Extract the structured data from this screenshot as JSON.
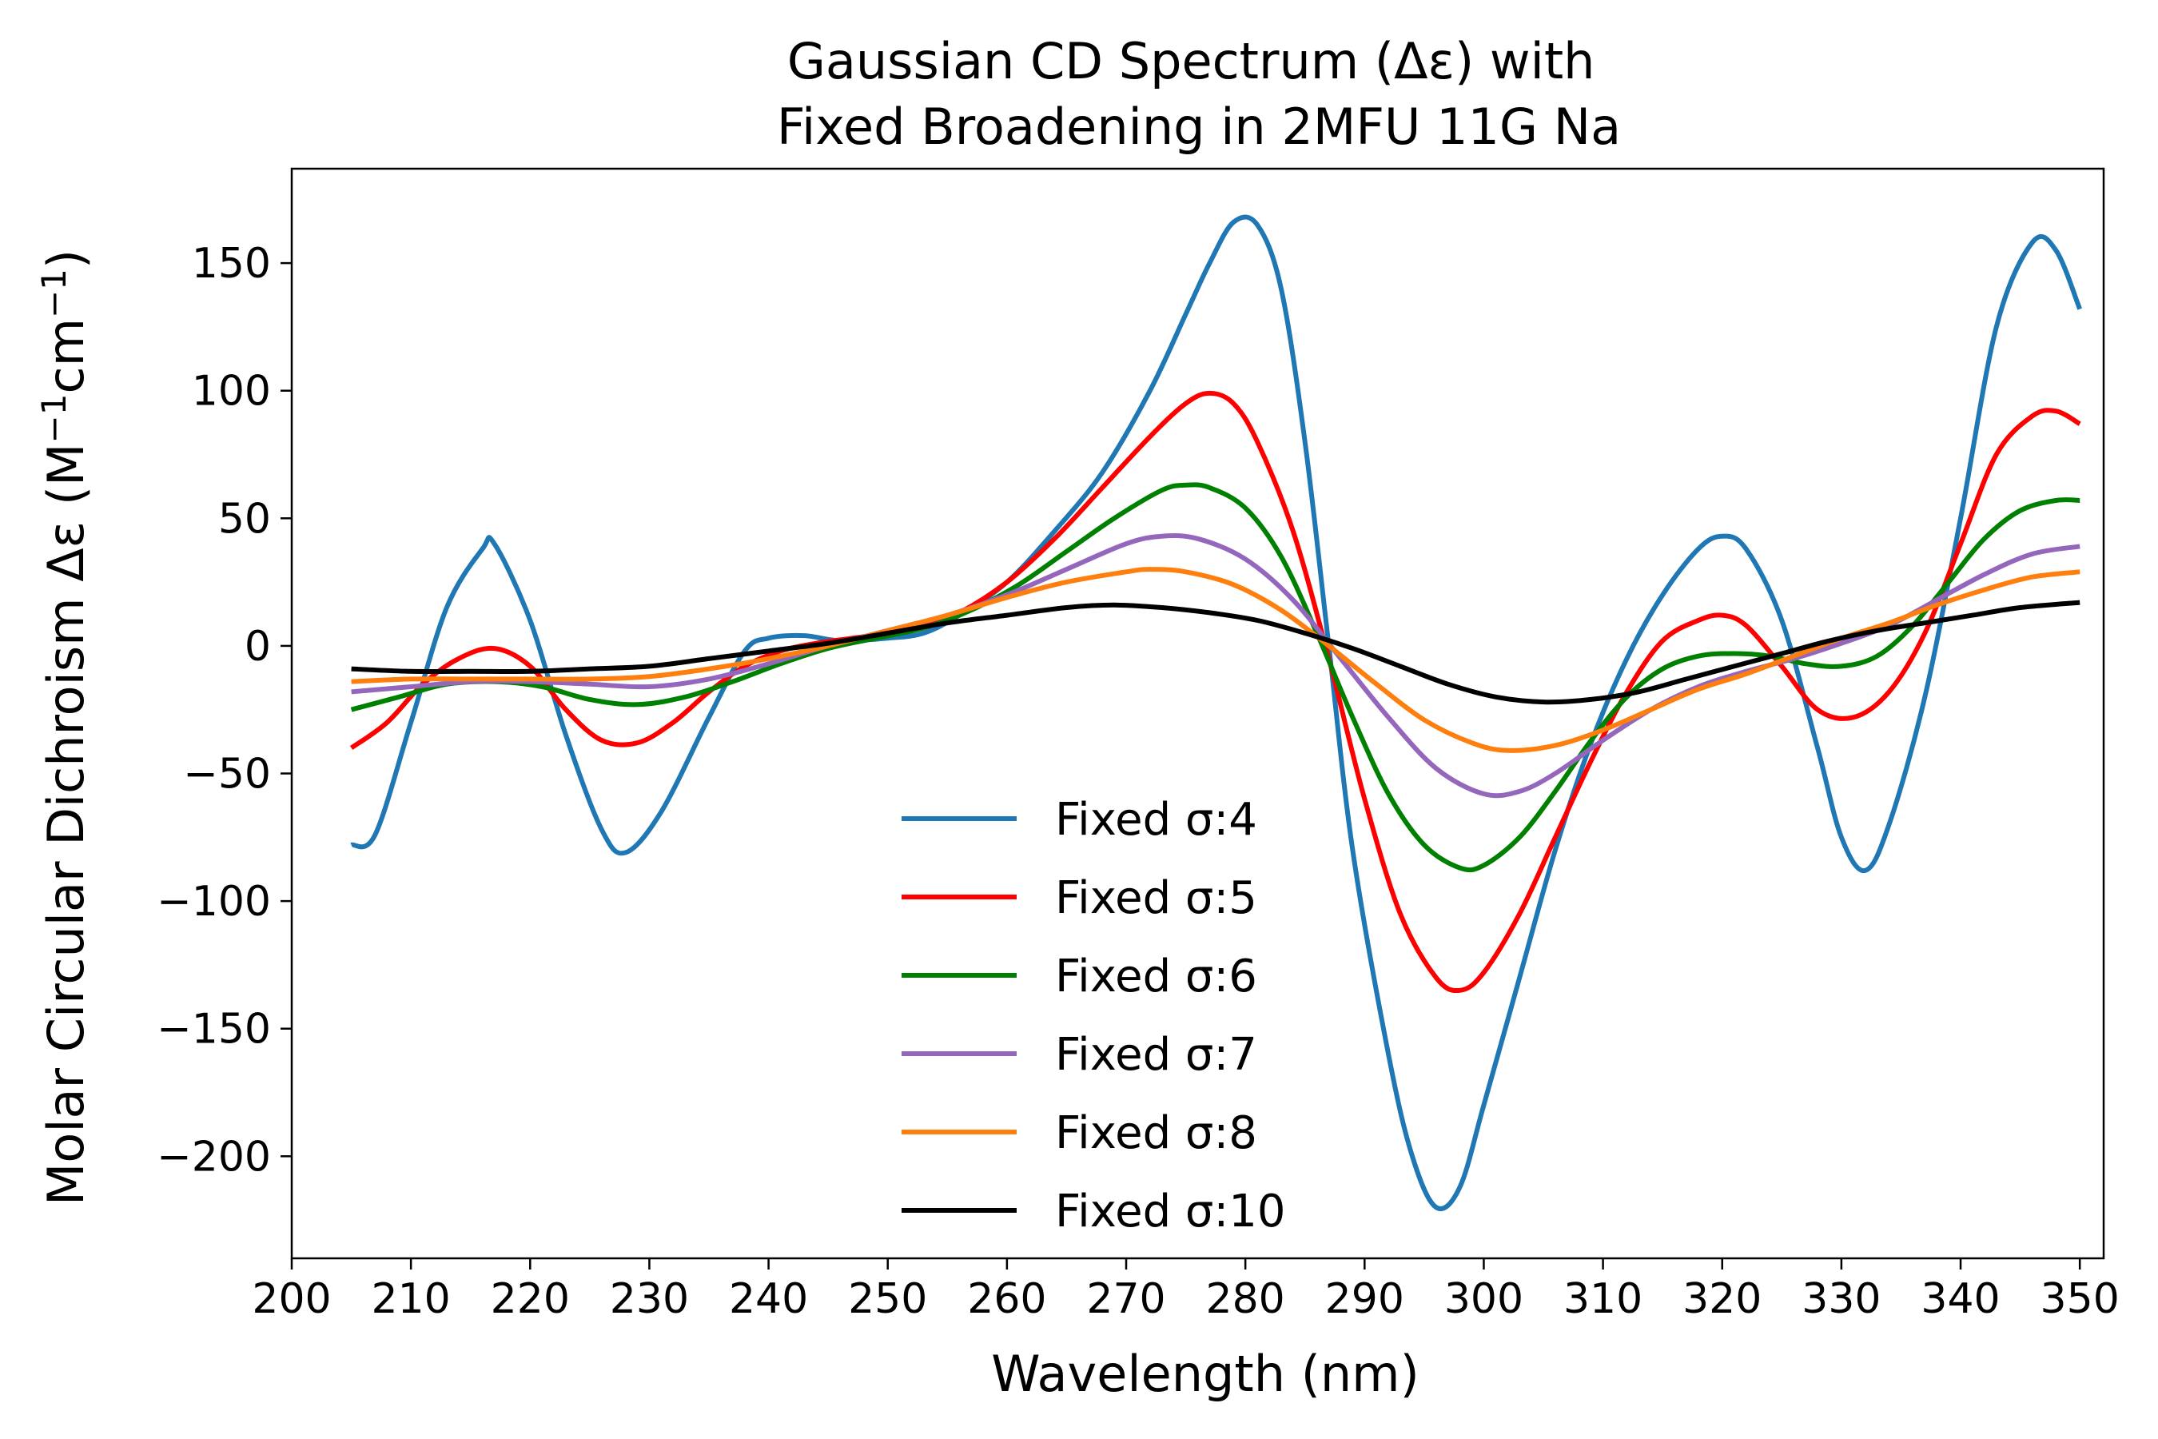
{
  "chart_data": {
    "type": "line",
    "title_lines": [
      "Gaussian CD Spectrum (Δε) with",
      "Fixed Broadening in 2MFU 11G Na"
    ],
    "xlabel": "Wavelength (nm)",
    "ylabel": {
      "prefix": "Molar Circular Dichroism Δε (M",
      "sup1": "−1",
      "mid": "cm",
      "sup2": "−1",
      "suffix": ")"
    },
    "xlim": [
      200,
      352
    ],
    "ylim": [
      -240,
      187
    ],
    "xticks": [
      200,
      210,
      220,
      230,
      240,
      250,
      260,
      270,
      280,
      290,
      300,
      310,
      320,
      330,
      340,
      350
    ],
    "yticks": [
      150,
      100,
      50,
      0,
      -50,
      -100,
      -150,
      -200
    ],
    "ytick_labels": [
      "150",
      "100",
      "50",
      "0",
      "−50",
      "−100",
      "−150",
      "−200"
    ],
    "grid": false,
    "legend_position": "lower-center",
    "series": [
      {
        "name": "Fixed σ:4",
        "color": "#1f77b4",
        "points": [
          [
            205,
            -78
          ],
          [
            207,
            -74
          ],
          [
            210,
            -30
          ],
          [
            213,
            15
          ],
          [
            216,
            38
          ],
          [
            217,
            40
          ],
          [
            220,
            10
          ],
          [
            223,
            -35
          ],
          [
            226,
            -72
          ],
          [
            228,
            -81
          ],
          [
            231,
            -65
          ],
          [
            235,
            -28
          ],
          [
            238,
            -2
          ],
          [
            240,
            3
          ],
          [
            243,
            4
          ],
          [
            246,
            2
          ],
          [
            250,
            3
          ],
          [
            253,
            5
          ],
          [
            256,
            12
          ],
          [
            260,
            25
          ],
          [
            264,
            45
          ],
          [
            268,
            68
          ],
          [
            272,
            100
          ],
          [
            275,
            130
          ],
          [
            277,
            150
          ],
          [
            279,
            166
          ],
          [
            281,
            165
          ],
          [
            283,
            140
          ],
          [
            285,
            80
          ],
          [
            287,
            0
          ],
          [
            289,
            -80
          ],
          [
            292,
            -160
          ],
          [
            294,
            -200
          ],
          [
            296,
            -220
          ],
          [
            298,
            -212
          ],
          [
            300,
            -180
          ],
          [
            303,
            -130
          ],
          [
            306,
            -80
          ],
          [
            309,
            -38
          ],
          [
            312,
            -5
          ],
          [
            315,
            20
          ],
          [
            318,
            38
          ],
          [
            320,
            43
          ],
          [
            322,
            38
          ],
          [
            325,
            10
          ],
          [
            328,
            -40
          ],
          [
            330,
            -75
          ],
          [
            332,
            -88
          ],
          [
            334,
            -70
          ],
          [
            337,
            -20
          ],
          [
            340,
            50
          ],
          [
            343,
            125
          ],
          [
            346,
            158
          ],
          [
            348,
            155
          ],
          [
            350,
            132
          ]
        ]
      },
      {
        "name": "Fixed σ:5",
        "color": "#ff0000",
        "points": [
          [
            205,
            -40
          ],
          [
            208,
            -30
          ],
          [
            211,
            -15
          ],
          [
            214,
            -5
          ],
          [
            217,
            -1
          ],
          [
            220,
            -8
          ],
          [
            223,
            -25
          ],
          [
            226,
            -37
          ],
          [
            229,
            -38
          ],
          [
            232,
            -30
          ],
          [
            235,
            -18
          ],
          [
            238,
            -8
          ],
          [
            241,
            -2
          ],
          [
            244,
            1
          ],
          [
            247,
            3
          ],
          [
            250,
            5
          ],
          [
            253,
            8
          ],
          [
            256,
            13
          ],
          [
            260,
            25
          ],
          [
            264,
            42
          ],
          [
            268,
            62
          ],
          [
            272,
            82
          ],
          [
            275,
            95
          ],
          [
            277,
            99
          ],
          [
            279,
            95
          ],
          [
            281,
            80
          ],
          [
            284,
            45
          ],
          [
            287,
            -5
          ],
          [
            290,
            -60
          ],
          [
            293,
            -105
          ],
          [
            296,
            -130
          ],
          [
            298,
            -135
          ],
          [
            300,
            -128
          ],
          [
            303,
            -105
          ],
          [
            306,
            -75
          ],
          [
            309,
            -45
          ],
          [
            312,
            -18
          ],
          [
            315,
            2
          ],
          [
            318,
            10
          ],
          [
            320,
            12
          ],
          [
            322,
            8
          ],
          [
            325,
            -8
          ],
          [
            328,
            -25
          ],
          [
            331,
            -28
          ],
          [
            334,
            -18
          ],
          [
            337,
            5
          ],
          [
            340,
            40
          ],
          [
            343,
            75
          ],
          [
            346,
            90
          ],
          [
            348,
            92
          ],
          [
            350,
            87
          ]
        ]
      },
      {
        "name": "Fixed σ:6",
        "color": "#008000",
        "points": [
          [
            205,
            -25
          ],
          [
            209,
            -20
          ],
          [
            213,
            -15
          ],
          [
            217,
            -14
          ],
          [
            221,
            -16
          ],
          [
            225,
            -21
          ],
          [
            229,
            -23
          ],
          [
            233,
            -20
          ],
          [
            237,
            -14
          ],
          [
            241,
            -7
          ],
          [
            245,
            -1
          ],
          [
            249,
            3
          ],
          [
            253,
            7
          ],
          [
            257,
            14
          ],
          [
            261,
            24
          ],
          [
            265,
            37
          ],
          [
            269,
            50
          ],
          [
            273,
            61
          ],
          [
            275,
            63
          ],
          [
            277,
            62
          ],
          [
            280,
            54
          ],
          [
            283,
            35
          ],
          [
            286,
            5
          ],
          [
            289,
            -28
          ],
          [
            292,
            -58
          ],
          [
            295,
            -78
          ],
          [
            298,
            -87
          ],
          [
            300,
            -86
          ],
          [
            303,
            -75
          ],
          [
            306,
            -57
          ],
          [
            309,
            -37
          ],
          [
            312,
            -20
          ],
          [
            315,
            -9
          ],
          [
            318,
            -4
          ],
          [
            321,
            -3
          ],
          [
            324,
            -4
          ],
          [
            327,
            -7
          ],
          [
            330,
            -8
          ],
          [
            333,
            -4
          ],
          [
            336,
            8
          ],
          [
            339,
            25
          ],
          [
            342,
            42
          ],
          [
            345,
            53
          ],
          [
            348,
            57
          ],
          [
            350,
            57
          ]
        ]
      },
      {
        "name": "Fixed σ:7",
        "color": "#9467bd",
        "points": [
          [
            205,
            -18
          ],
          [
            210,
            -16
          ],
          [
            215,
            -14
          ],
          [
            220,
            -14
          ],
          [
            225,
            -15
          ],
          [
            230,
            -16
          ],
          [
            235,
            -13
          ],
          [
            240,
            -7
          ],
          [
            245,
            0
          ],
          [
            250,
            6
          ],
          [
            255,
            12
          ],
          [
            260,
            20
          ],
          [
            265,
            30
          ],
          [
            270,
            40
          ],
          [
            273,
            43
          ],
          [
            276,
            42
          ],
          [
            280,
            34
          ],
          [
            284,
            18
          ],
          [
            288,
            -5
          ],
          [
            292,
            -28
          ],
          [
            296,
            -48
          ],
          [
            300,
            -58
          ],
          [
            303,
            -57
          ],
          [
            306,
            -50
          ],
          [
            310,
            -37
          ],
          [
            314,
            -25
          ],
          [
            318,
            -16
          ],
          [
            322,
            -10
          ],
          [
            326,
            -5
          ],
          [
            330,
            1
          ],
          [
            334,
            8
          ],
          [
            338,
            18
          ],
          [
            342,
            28
          ],
          [
            346,
            36
          ],
          [
            350,
            39
          ]
        ]
      },
      {
        "name": "Fixed σ:8",
        "color": "#ff7f0e",
        "points": [
          [
            205,
            -14
          ],
          [
            210,
            -13
          ],
          [
            215,
            -13
          ],
          [
            220,
            -13
          ],
          [
            225,
            -13
          ],
          [
            230,
            -12
          ],
          [
            235,
            -9
          ],
          [
            240,
            -5
          ],
          [
            245,
            0
          ],
          [
            250,
            6
          ],
          [
            255,
            12
          ],
          [
            260,
            19
          ],
          [
            265,
            25
          ],
          [
            270,
            29
          ],
          [
            272,
            30
          ],
          [
            275,
            29
          ],
          [
            279,
            24
          ],
          [
            283,
            14
          ],
          [
            287,
            0
          ],
          [
            291,
            -15
          ],
          [
            295,
            -29
          ],
          [
            299,
            -38
          ],
          [
            302,
            -41
          ],
          [
            306,
            -39
          ],
          [
            310,
            -33
          ],
          [
            314,
            -25
          ],
          [
            318,
            -17
          ],
          [
            322,
            -11
          ],
          [
            326,
            -4
          ],
          [
            330,
            3
          ],
          [
            334,
            9
          ],
          [
            338,
            16
          ],
          [
            342,
            22
          ],
          [
            346,
            27
          ],
          [
            350,
            29
          ]
        ]
      },
      {
        "name": "Fixed σ:10",
        "color": "#000000",
        "points": [
          [
            205,
            -9
          ],
          [
            210,
            -10
          ],
          [
            215,
            -10
          ],
          [
            220,
            -10
          ],
          [
            225,
            -9
          ],
          [
            230,
            -8
          ],
          [
            235,
            -5
          ],
          [
            240,
            -2
          ],
          [
            245,
            1
          ],
          [
            250,
            5
          ],
          [
            255,
            9
          ],
          [
            260,
            12
          ],
          [
            265,
            15
          ],
          [
            269,
            16
          ],
          [
            273,
            15
          ],
          [
            277,
            13
          ],
          [
            281,
            10
          ],
          [
            285,
            5
          ],
          [
            289,
            -1
          ],
          [
            293,
            -8
          ],
          [
            297,
            -15
          ],
          [
            301,
            -20
          ],
          [
            305,
            -22
          ],
          [
            309,
            -21
          ],
          [
            313,
            -18
          ],
          [
            317,
            -13
          ],
          [
            321,
            -8
          ],
          [
            325,
            -3
          ],
          [
            329,
            2
          ],
          [
            333,
            6
          ],
          [
            337,
            9
          ],
          [
            341,
            12
          ],
          [
            345,
            15
          ],
          [
            350,
            17
          ]
        ]
      }
    ]
  }
}
